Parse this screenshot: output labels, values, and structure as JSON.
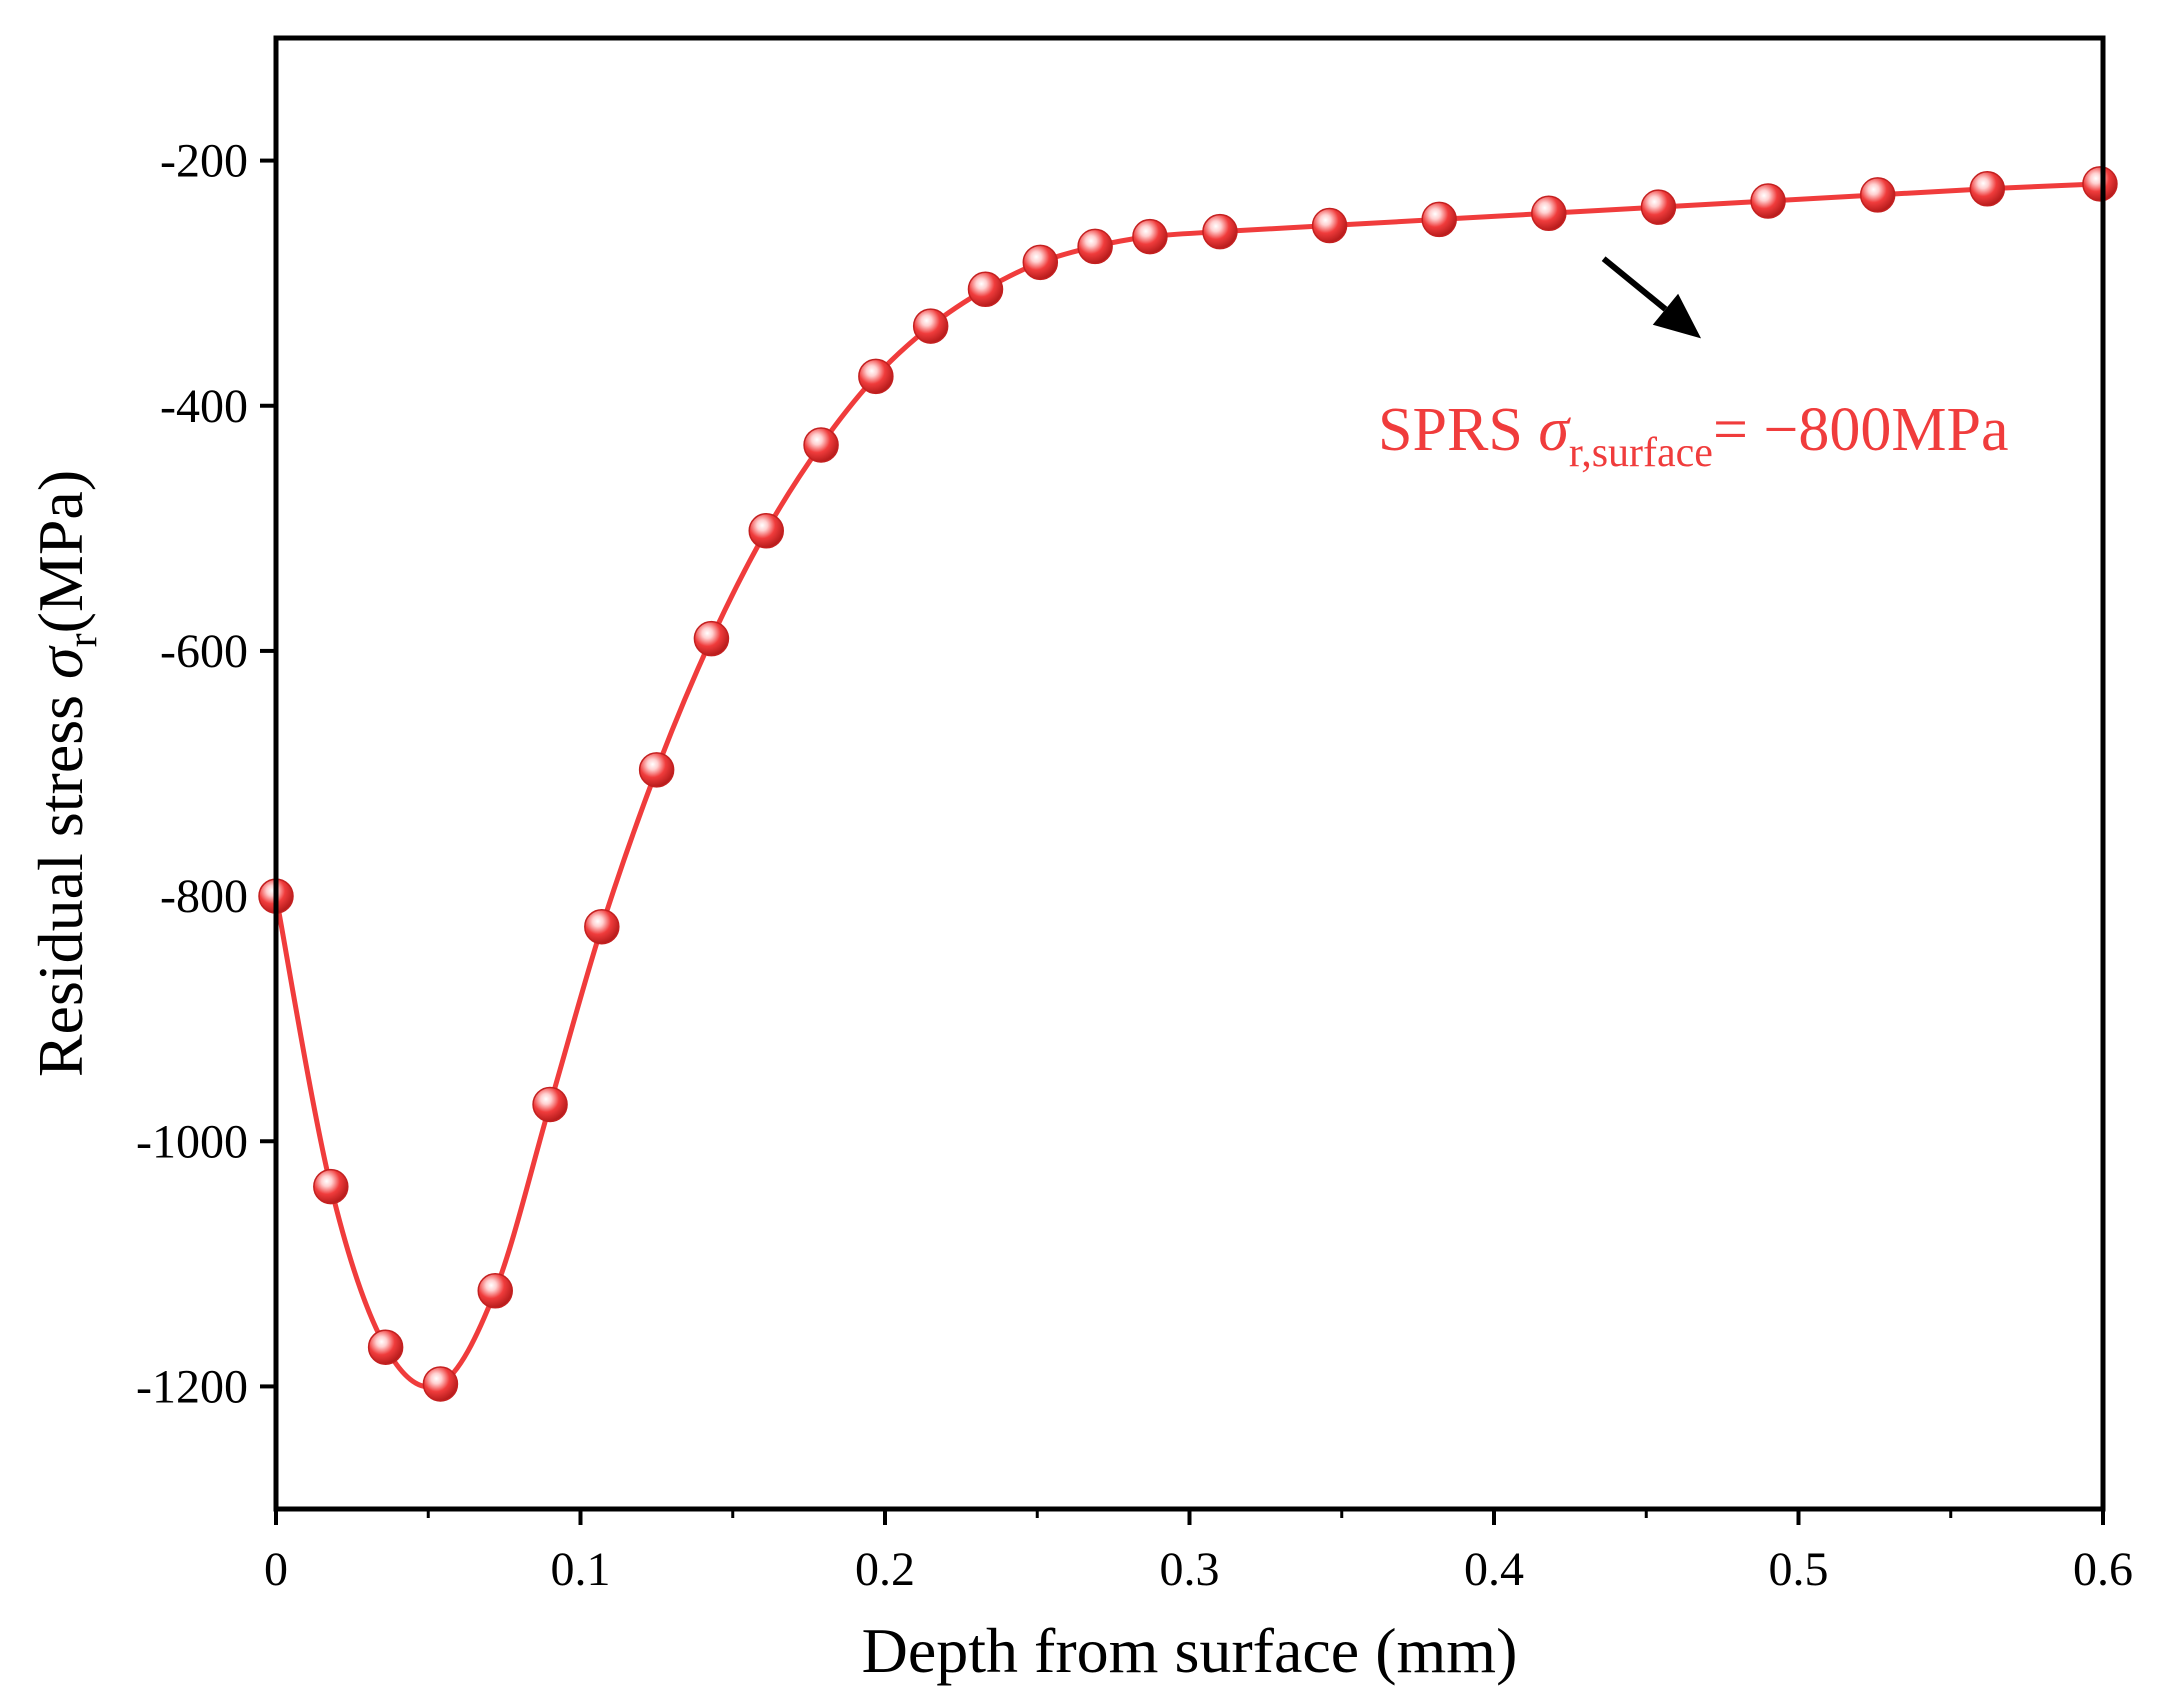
{
  "chart_data": {
    "type": "line",
    "title": "",
    "xlabel": "Depth from surface (mm)",
    "ylabel": {
      "prefix": "Residual stress ",
      "symbol": "σ",
      "subscript": "r",
      "suffix": "(MPa)"
    },
    "xlim": [
      0,
      0.6
    ],
    "ylim": [
      -1300,
      -100
    ],
    "x_ticks": [
      0,
      0.1,
      0.2,
      0.3,
      0.4,
      0.5,
      0.6
    ],
    "x_tick_labels": [
      "0",
      "0.1",
      "0.2",
      "0.3",
      "0.4",
      "0.5",
      "0.6"
    ],
    "y_ticks": [
      -200,
      -400,
      -600,
      -800,
      -1000,
      -1200
    ],
    "y_tick_labels": [
      "-200",
      "-400",
      "-600",
      "-800",
      "-1000",
      "-1200"
    ],
    "grid": false,
    "series": [
      {
        "name": "SPRS",
        "color": "#f03c3c",
        "marker": "sphere",
        "x": [
          0,
          0.018,
          0.036,
          0.054,
          0.072,
          0.09,
          0.107,
          0.125,
          0.143,
          0.161,
          0.179,
          0.197,
          0.215,
          0.233,
          0.251,
          0.269,
          0.287,
          0.31,
          0.346,
          0.382,
          0.418,
          0.454,
          0.49,
          0.526,
          0.562,
          0.599
        ],
        "y": [
          -800,
          -1037,
          -1168,
          -1198,
          -1122,
          -970,
          -825,
          -697,
          -590,
          -502,
          -432,
          -376,
          -335,
          -305,
          -283,
          -270,
          -262,
          -258,
          -253,
          -248,
          -243,
          -238,
          -233,
          -228,
          -223,
          -219
        ]
      }
    ],
    "annotations": [
      {
        "name": "SPRS",
        "symbol": "σ",
        "subscript": "r,surface",
        "value": "= −800MPa",
        "color": "#f03c3c",
        "arrow_from": [
          0.436,
          -280
        ],
        "arrow_to": [
          0.468,
          -345
        ]
      }
    ]
  }
}
